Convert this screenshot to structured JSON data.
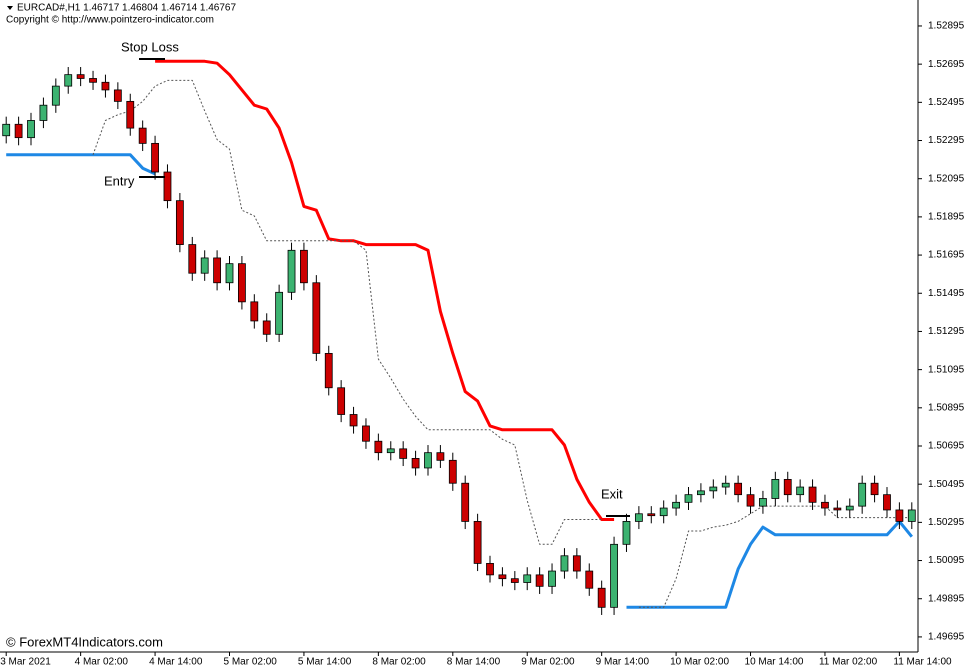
{
  "header": {
    "symbol_line": "EURCAD#,H1  1.46717 1.46804 1.46714 1.46767",
    "copyright": "Copyright © http://www.pointzero-indicator.com"
  },
  "watermark": "© ForexMT4Indicators.com",
  "chart_data": {
    "type": "candlestick",
    "annotations": {
      "stop_loss": "Stop Loss",
      "entry": "Entry",
      "exit": "Exit"
    },
    "ylim": [
      1.49616,
      1.53031
    ],
    "yticks": [
      1.52895,
      1.52695,
      1.52495,
      1.52295,
      1.52095,
      1.51895,
      1.51695,
      1.51495,
      1.51295,
      1.51095,
      1.50895,
      1.50695,
      1.50495,
      1.50295,
      1.50095,
      1.49895,
      1.49695
    ],
    "up_color": "#3cb371",
    "down_color": "#cc0000",
    "categories": [
      "3 Mar 2021",
      null,
      null,
      null,
      null,
      null,
      "4 Mar 02:00",
      null,
      null,
      null,
      null,
      null,
      "4 Mar 14:00",
      null,
      null,
      null,
      null,
      null,
      "5 Mar 02:00",
      null,
      null,
      null,
      null,
      null,
      "5 Mar 14:00",
      null,
      null,
      null,
      null,
      null,
      "8 Mar 02:00",
      null,
      null,
      null,
      null,
      null,
      "8 Mar 14:00",
      null,
      null,
      null,
      null,
      null,
      "9 Mar 02:00",
      null,
      null,
      null,
      null,
      null,
      "9 Mar 14:00",
      null,
      null,
      null,
      null,
      null,
      "10 Mar 02:00",
      null,
      null,
      null,
      null,
      null,
      "10 Mar 14:00",
      null,
      null,
      null,
      null,
      null,
      "11 Mar 02:00",
      null,
      null,
      null,
      null,
      null,
      "11 Mar 14:00",
      null
    ],
    "open": [
      1.5232,
      1.5238,
      1.5231,
      1.524,
      1.5248,
      1.5258,
      1.5264,
      1.5262,
      1.526,
      1.5256,
      1.525,
      1.5236,
      1.5228,
      1.5213,
      1.5198,
      1.5175,
      1.516,
      1.5168,
      1.5155,
      1.5165,
      1.5145,
      1.5135,
      1.5128,
      1.515,
      1.5172,
      1.5155,
      1.5118,
      1.51,
      1.5086,
      1.508,
      1.5072,
      1.5066,
      1.5068,
      1.5063,
      1.5058,
      1.5066,
      1.5062,
      1.505,
      1.503,
      1.5008,
      1.5002,
      1.5,
      1.4998,
      1.5002,
      1.4996,
      1.5004,
      1.5012,
      1.5004,
      1.4995,
      1.4985,
      1.5018,
      1.503,
      1.5034,
      1.5033,
      1.5037,
      1.504,
      1.5044,
      1.5046,
      1.5048,
      1.505,
      1.5044,
      1.5038,
      1.5042,
      1.5052,
      1.5044,
      1.5048,
      1.504,
      1.5037,
      1.5036,
      1.5038,
      1.505,
      1.5044,
      1.5036,
      1.503
    ],
    "high": [
      1.5242,
      1.5242,
      1.5244,
      1.5252,
      1.5262,
      1.5268,
      1.5268,
      1.5266,
      1.5264,
      1.526,
      1.5254,
      1.524,
      1.5232,
      1.5217,
      1.5202,
      1.5179,
      1.5172,
      1.5172,
      1.5169,
      1.5169,
      1.5149,
      1.5139,
      1.5154,
      1.5176,
      1.5176,
      1.5159,
      1.5122,
      1.5104,
      1.509,
      1.5084,
      1.5076,
      1.5072,
      1.5072,
      1.5067,
      1.507,
      1.507,
      1.5066,
      1.5054,
      1.5034,
      1.5012,
      1.5006,
      1.5004,
      1.5006,
      1.5006,
      1.5008,
      1.5016,
      1.5016,
      1.5008,
      1.4999,
      1.5022,
      1.5034,
      1.5038,
      1.5038,
      1.5041,
      1.5044,
      1.5048,
      1.505,
      1.5052,
      1.5054,
      1.5054,
      1.5048,
      1.5046,
      1.5056,
      1.5056,
      1.5052,
      1.5052,
      1.5044,
      1.5041,
      1.5042,
      1.5054,
      1.5054,
      1.5048,
      1.504,
      1.504
    ],
    "low": [
      1.5228,
      1.5227,
      1.5227,
      1.5236,
      1.5244,
      1.5254,
      1.5258,
      1.5256,
      1.5252,
      1.5246,
      1.5232,
      1.5224,
      1.5209,
      1.5194,
      1.5171,
      1.5156,
      1.5156,
      1.5151,
      1.5151,
      1.5141,
      1.5131,
      1.5124,
      1.5124,
      1.5146,
      1.5151,
      1.5114,
      1.5096,
      1.5082,
      1.5076,
      1.5068,
      1.5062,
      1.5062,
      1.5059,
      1.5054,
      1.5054,
      1.5058,
      1.5046,
      1.5026,
      1.5004,
      1.4998,
      1.4996,
      1.4994,
      1.4994,
      1.4992,
      1.4992,
      1.5,
      1.5,
      1.4991,
      1.4981,
      1.4981,
      1.5014,
      1.5026,
      1.5029,
      1.5029,
      1.5033,
      1.5036,
      1.504,
      1.5042,
      1.5044,
      1.504,
      1.5034,
      1.5034,
      1.5038,
      1.504,
      1.504,
      1.5036,
      1.5033,
      1.5032,
      1.5032,
      1.5034,
      1.504,
      1.5032,
      1.5026,
      1.5026
    ],
    "close": [
      1.5238,
      1.5231,
      1.524,
      1.5248,
      1.5258,
      1.5264,
      1.5262,
      1.526,
      1.5256,
      1.525,
      1.5236,
      1.5228,
      1.5213,
      1.5198,
      1.5175,
      1.516,
      1.5168,
      1.5155,
      1.5165,
      1.5145,
      1.5135,
      1.5128,
      1.515,
      1.5172,
      1.5155,
      1.5118,
      1.51,
      1.5086,
      1.508,
      1.5072,
      1.5066,
      1.5068,
      1.5063,
      1.5058,
      1.5066,
      1.5062,
      1.505,
      1.503,
      1.5008,
      1.5002,
      1.5,
      1.4998,
      1.5002,
      1.4996,
      1.5004,
      1.5012,
      1.5004,
      1.4995,
      1.4985,
      1.5018,
      1.503,
      1.5034,
      1.5033,
      1.5037,
      1.504,
      1.5044,
      1.5046,
      1.5048,
      1.505,
      1.5044,
      1.5038,
      1.5042,
      1.5052,
      1.5044,
      1.5048,
      1.504,
      1.5037,
      1.5036,
      1.5038,
      1.505,
      1.5044,
      1.5036,
      1.503,
      1.5036
    ],
    "lines": [
      {
        "color": "#ff0000",
        "style": "solid",
        "width": 3,
        "values": [
          null,
          null,
          null,
          null,
          null,
          null,
          null,
          null,
          null,
          null,
          null,
          null,
          1.5271,
          1.5271,
          1.5271,
          1.5271,
          1.5271,
          1.527,
          1.5264,
          1.5256,
          1.5248,
          1.5246,
          1.5236,
          1.5218,
          1.5195,
          1.5193,
          1.5178,
          1.5177,
          1.5177,
          1.5175,
          1.5175,
          1.5175,
          1.5175,
          1.5175,
          1.5172,
          1.514,
          1.5118,
          1.5098,
          1.5093,
          1.508,
          1.5078,
          1.5078,
          1.5078,
          1.5078,
          1.5078,
          1.507,
          1.5052,
          1.504,
          1.5031,
          1.5031,
          null,
          null,
          null,
          null,
          null,
          null,
          null,
          null,
          null,
          null,
          null,
          null,
          null,
          null,
          null,
          null,
          null,
          null,
          null,
          null,
          null,
          null,
          null,
          null
        ]
      },
      {
        "color": "#1e88e5",
        "style": "solid",
        "width": 3,
        "values": [
          1.5222,
          1.5222,
          1.5222,
          1.5222,
          1.5222,
          1.5222,
          1.5222,
          1.5222,
          1.5222,
          1.5222,
          1.5222,
          1.5215,
          1.5212,
          null,
          null,
          null,
          null,
          null,
          null,
          null,
          null,
          null,
          null,
          null,
          null,
          null,
          null,
          null,
          null,
          null,
          null,
          null,
          null,
          null,
          null,
          null,
          null,
          null,
          null,
          null,
          null,
          null,
          null,
          null,
          null,
          null,
          null,
          null,
          null,
          null,
          1.4985,
          1.4985,
          1.4985,
          1.4985,
          1.4985,
          1.4985,
          1.4985,
          1.4985,
          1.4985,
          1.5005,
          1.5018,
          1.5027,
          1.5023,
          1.5023,
          1.5023,
          1.5023,
          1.5023,
          1.5023,
          1.5023,
          1.5023,
          1.5023,
          1.5023,
          1.503,
          1.5022
        ]
      },
      {
        "color": "#555555",
        "style": "dotted",
        "width": 1,
        "values": [
          null,
          null,
          null,
          null,
          null,
          null,
          null,
          1.5222,
          1.524,
          1.5243,
          1.5245,
          1.525,
          1.5258,
          1.5261,
          1.5261,
          1.5261,
          1.5245,
          1.523,
          1.5225,
          1.5193,
          1.519,
          1.5177,
          1.5177,
          1.5177,
          1.5177,
          1.5177,
          1.5177,
          1.5177,
          1.5177,
          1.5172,
          1.5115,
          1.5105,
          1.5094,
          1.5085,
          1.5078,
          1.5078,
          1.5078,
          1.5078,
          1.5078,
          1.5078,
          1.5073,
          1.507,
          1.5041,
          1.5018,
          1.5018,
          1.5031,
          1.5031,
          1.5031,
          1.5031,
          null,
          null,
          1.4985,
          1.4985,
          1.4985,
          1.5,
          1.5025,
          1.5025,
          1.5027,
          1.5028,
          1.503,
          1.5034,
          1.5038,
          1.5038,
          1.5038,
          1.5038,
          1.5038,
          1.5038,
          1.5032,
          1.5032,
          1.5032,
          1.5032,
          1.5032,
          1.5032,
          1.5032
        ]
      }
    ]
  }
}
